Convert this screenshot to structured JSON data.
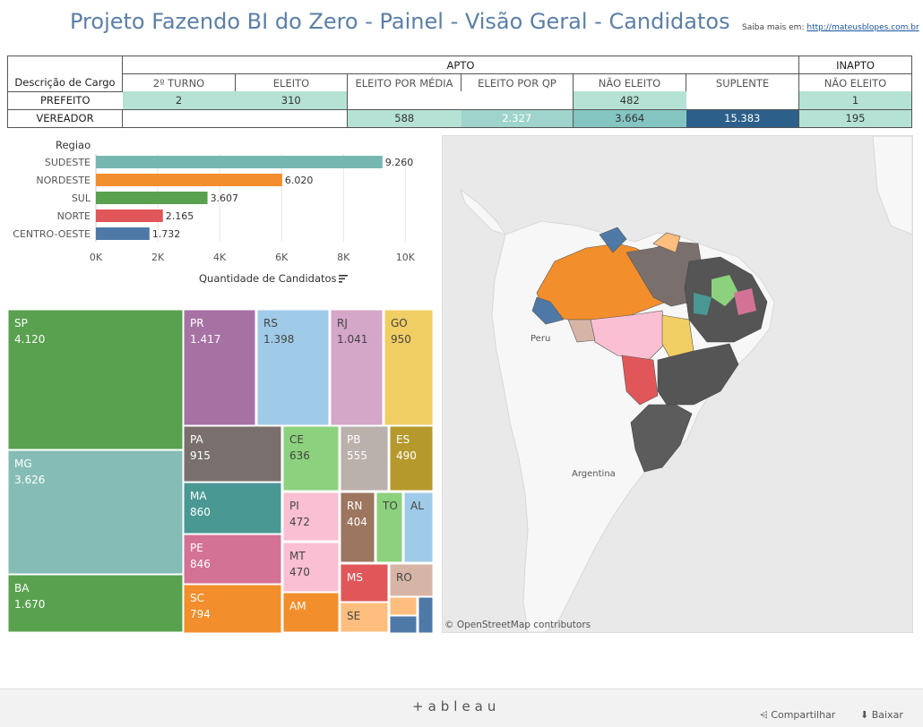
{
  "header": {
    "title": "Projeto Fazendo BI do Zero - Painel - Visão Geral - Candidatos",
    "more_prefix": "Saiba mais em:",
    "more_link": "http://mateusblopes.com.br"
  },
  "matrix": {
    "group_apto": "APTO",
    "group_inapto": "INAPTO",
    "row_header": "Descrição de Cargo",
    "columns": [
      "2º TURNO",
      "ELEITO",
      "ELEITO POR MÉDIA",
      "ELEITO POR QP",
      "NÃO ELEITO",
      "SUPLENTE",
      "NÃO ELEITO"
    ],
    "rows": [
      {
        "label": "PREFEITO",
        "cells": [
          "2",
          "310",
          "",
          "",
          "482",
          "",
          "1"
        ]
      },
      {
        "label": "VEREADOR",
        "cells": [
          "",
          "",
          "588",
          "2.327",
          "3.664",
          "15.383",
          "195"
        ]
      }
    ],
    "colors": {
      "light": "#b5e2d4",
      "mid": "#9ed4cc",
      "midplus": "#84c5c2",
      "dark": "#2c5f8a"
    }
  },
  "chart_data": {
    "type": "bar",
    "title": "Regiao",
    "categories": [
      "SUDESTE",
      "NORDESTE",
      "SUL",
      "NORTE",
      "CENTRO-OESTE"
    ],
    "values": [
      9260,
      6020,
      3607,
      2165,
      1732
    ],
    "labels": [
      "9.260",
      "6.020",
      "3.607",
      "2.165",
      "1.732"
    ],
    "colors": [
      "#76b7b2",
      "#f28e2b",
      "#59a14f",
      "#e15759",
      "#4e79a7"
    ],
    "xlabel": "Quantidade de Candidatos",
    "ticks": [
      "0K",
      "2K",
      "4K",
      "6K",
      "8K",
      "10K"
    ],
    "tick_values": [
      0,
      2000,
      4000,
      6000,
      8000,
      10000
    ],
    "xlim": [
      0,
      10800
    ]
  },
  "treemap": [
    {
      "label": "SP",
      "value": "4.120",
      "color": "#59a14f"
    },
    {
      "label": "MG",
      "value": "3.626",
      "color": "#86bcb6"
    },
    {
      "label": "BA",
      "value": "1.670",
      "color": "#59a14f"
    },
    {
      "label": "PR",
      "value": "1.417",
      "color": "#a672a4"
    },
    {
      "label": "RS",
      "value": "1.398",
      "color": "#a0cbe8"
    },
    {
      "label": "RJ",
      "value": "1.041",
      "color": "#d4a6c8"
    },
    {
      "label": "GO",
      "value": "950",
      "color": "#f1ce63"
    },
    {
      "label": "PA",
      "value": "915",
      "color": "#79706e"
    },
    {
      "label": "CE",
      "value": "636",
      "color": "#8cd17d"
    },
    {
      "label": "PB",
      "value": "555",
      "color": "#bab0ac"
    },
    {
      "label": "ES",
      "value": "490",
      "color": "#b6992d"
    },
    {
      "label": "MA",
      "value": "860",
      "color": "#499894"
    },
    {
      "label": "PI",
      "value": "472",
      "color": "#fabfd2"
    },
    {
      "label": "RN",
      "value": "404",
      "color": "#9d7660"
    },
    {
      "label": "TO",
      "value": "",
      "color": "#8cd17d"
    },
    {
      "label": "AL",
      "value": "",
      "color": "#a0cbe8"
    },
    {
      "label": "PE",
      "value": "846",
      "color": "#d37295"
    },
    {
      "label": "MT",
      "value": "470",
      "color": "#fabfd2"
    },
    {
      "label": "MS",
      "value": "",
      "color": "#e15759"
    },
    {
      "label": "RO",
      "value": "",
      "color": "#d7b5a6"
    },
    {
      "label": "SC",
      "value": "794",
      "color": "#f28e2b"
    },
    {
      "label": "AM",
      "value": "",
      "color": "#f28e2b"
    },
    {
      "label": "SE",
      "value": "",
      "color": "#ffbe7d"
    },
    {
      "label": "",
      "value": "",
      "color": "#ffbe7d"
    },
    {
      "label": "",
      "value": "",
      "color": "#4e79a7"
    },
    {
      "label": "",
      "value": "",
      "color": "#4e79a7"
    }
  ],
  "map": {
    "labels": [
      "Peru",
      "Argentina"
    ],
    "attribution": "© OpenStreetMap contributors"
  },
  "footer": {
    "logo": "+ableau",
    "share": "Compartilhar",
    "download": "Baixar"
  }
}
